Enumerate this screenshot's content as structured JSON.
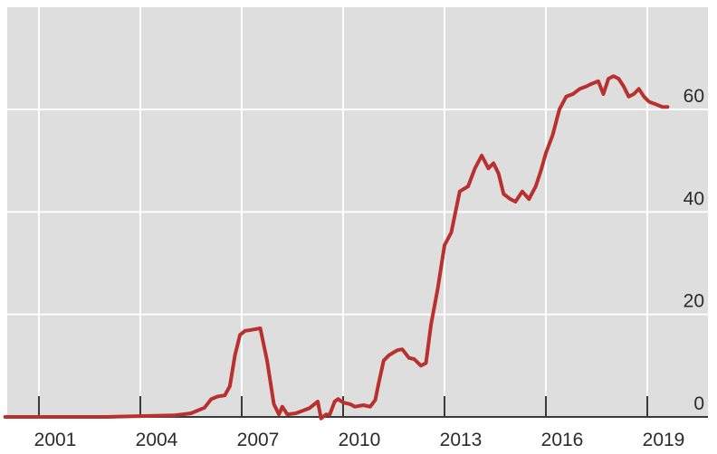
{
  "chart_data": {
    "type": "line",
    "title": "",
    "xlabel": "",
    "ylabel": "",
    "x_ticks": [
      "2001",
      "2004",
      "2007",
      "2010",
      "2013",
      "2016",
      "2019"
    ],
    "y_ticks": [
      "0",
      "20",
      "40",
      "60"
    ],
    "xlim": [
      2000.0,
      2020.2
    ],
    "ylim": [
      0,
      70
    ],
    "grid": true,
    "y_axis_position": "right",
    "background_color": "#dedede",
    "grid_color": "#ffffff",
    "series": [
      {
        "color": "#b8312f",
        "x": [
          2000.0,
          2003.0,
          2005.0,
          2005.5,
          2005.9,
          2006.1,
          2006.3,
          2006.5,
          2006.65,
          2006.8,
          2006.95,
          2007.1,
          2007.3,
          2007.55,
          2007.75,
          2007.95,
          2008.1,
          2008.2,
          2008.35,
          2008.6,
          2009.0,
          2009.25,
          2009.35,
          2009.5,
          2009.6,
          2009.75,
          2009.85,
          2010.0,
          2010.2,
          2010.35,
          2010.6,
          2010.8,
          2010.95,
          2011.05,
          2011.2,
          2011.35,
          2011.6,
          2011.75,
          2011.95,
          2012.1,
          2012.3,
          2012.45,
          2012.6,
          2012.8,
          2013.0,
          2013.2,
          2013.45,
          2013.7,
          2013.9,
          2014.1,
          2014.3,
          2014.45,
          2014.6,
          2014.75,
          2014.95,
          2015.1,
          2015.3,
          2015.5,
          2015.7,
          2015.85,
          2016.0,
          2016.2,
          2016.4,
          2016.6,
          2016.8,
          2017.0,
          2017.2,
          2017.35,
          2017.55,
          2017.7,
          2017.85,
          2018.0,
          2018.15,
          2018.3,
          2018.45,
          2018.6,
          2018.75,
          2018.9,
          2019.05,
          2019.25,
          2019.45,
          2019.6
        ],
        "y": [
          0,
          0,
          0.3,
          0.7,
          1.8,
          3.5,
          4.0,
          4.2,
          6.0,
          12.0,
          16.0,
          16.8,
          17.0,
          17.3,
          11.0,
          2.5,
          0.5,
          2.0,
          0.5,
          0.7,
          1.7,
          3.0,
          -0.3,
          0.5,
          0.4,
          3.0,
          3.5,
          2.8,
          2.5,
          2.0,
          2.3,
          2.0,
          3.3,
          6.5,
          11.0,
          12.0,
          13.0,
          13.2,
          11.5,
          11.3,
          10.0,
          10.5,
          18.0,
          25.0,
          33.5,
          36.0,
          44.0,
          45.0,
          48.5,
          51.0,
          48.5,
          49.5,
          47.5,
          43.5,
          42.5,
          42.0,
          44.0,
          42.5,
          45.0,
          48.0,
          51.5,
          55.0,
          60.0,
          62.5,
          63.0,
          64.0,
          64.5,
          65.0,
          65.5,
          63.0,
          66.0,
          66.5,
          66.0,
          64.5,
          62.5,
          63.0,
          64.0,
          62.5,
          61.5,
          61.0,
          60.5,
          60.5
        ]
      }
    ]
  }
}
